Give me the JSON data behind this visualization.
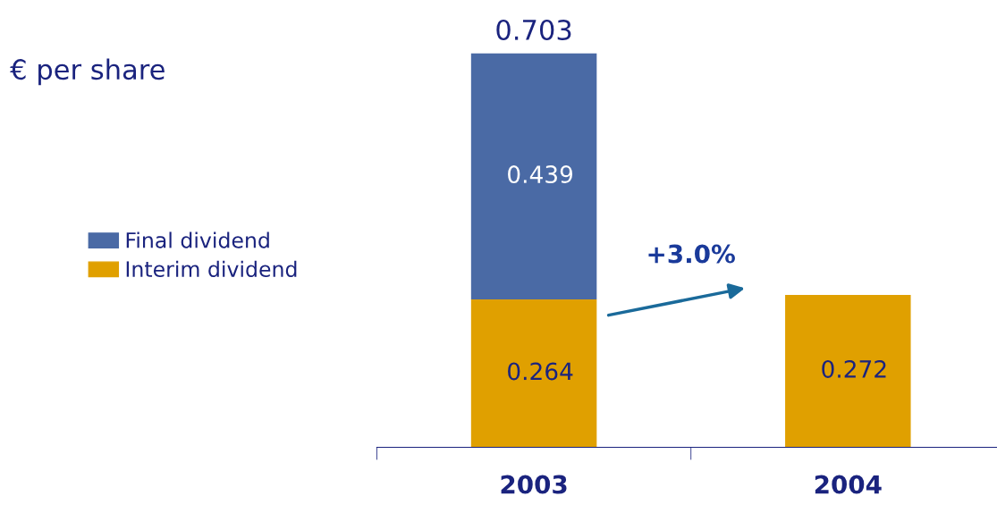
{
  "chart_data": {
    "type": "bar",
    "stacked": true,
    "title": "€ per share",
    "categories": [
      "2003",
      "2004"
    ],
    "series": [
      {
        "name": "Interim dividend",
        "color": "#e0a000",
        "values": [
          0.264,
          0.272
        ]
      },
      {
        "name": "Final dividend",
        "color": "#4a6aa5",
        "values": [
          0.439,
          null
        ]
      }
    ],
    "data_labels": true,
    "totals": [
      "0.703",
      null
    ],
    "annotations": [
      "+3.0%"
    ],
    "legend": "left",
    "grid": false
  }
}
